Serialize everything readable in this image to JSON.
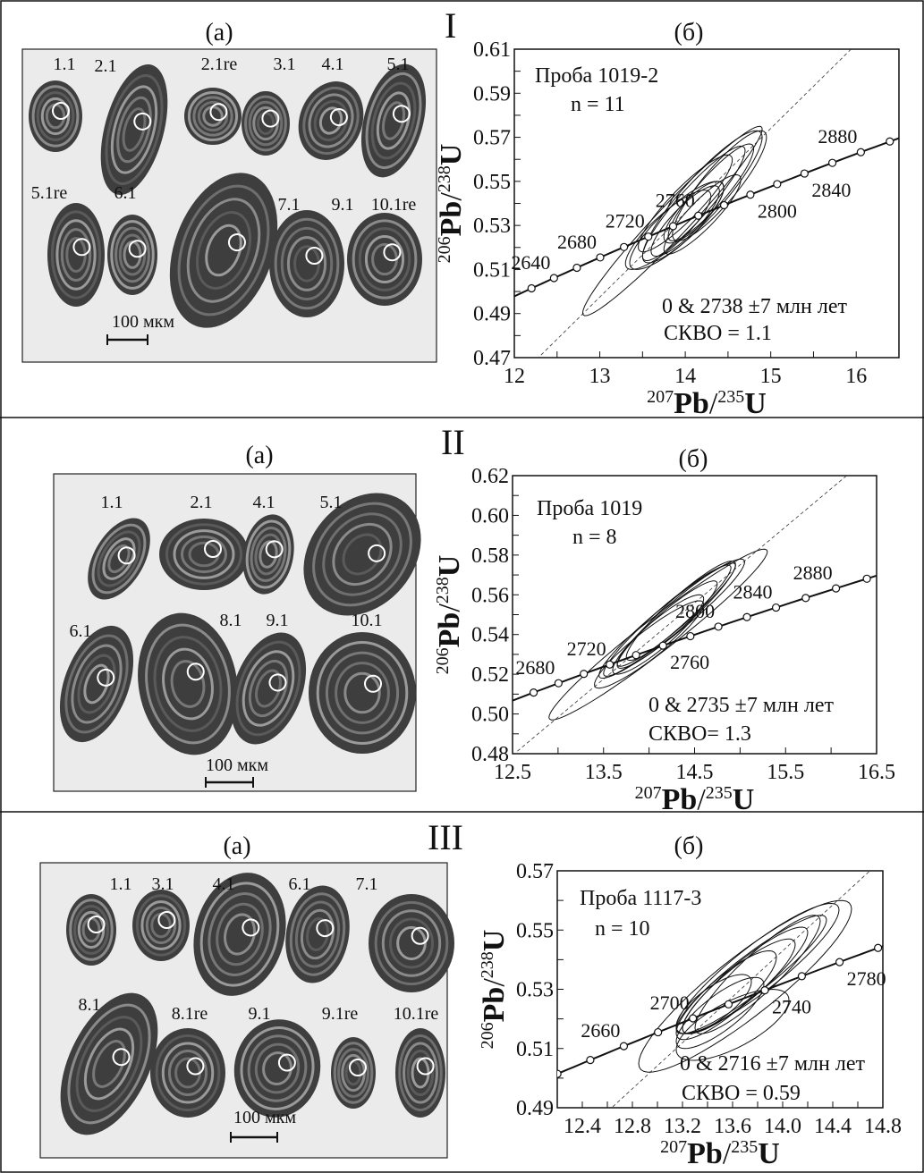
{
  "panels": [
    {
      "section_label": "I",
      "image_label": "(а)",
      "plot_label": "(б)",
      "grain_labels": [
        "1.1",
        "2.1",
        "2.1re",
        "3.1",
        "4.1",
        "5.1",
        "5.1re",
        "6.1",
        "7.1",
        "9.1",
        "10.1re"
      ],
      "scale_bar": "100 мкм"
    },
    {
      "section_label": "II",
      "image_label": "(а)",
      "plot_label": "(б)",
      "grain_labels": [
        "1.1",
        "2.1",
        "4.1",
        "5.1",
        "6.1",
        "8.1",
        "9.1",
        "10.1"
      ],
      "scale_bar": "100 мкм"
    },
    {
      "section_label": "III",
      "image_label": "(а)",
      "plot_label": "(б)",
      "grain_labels": [
        "1.1",
        "3.1",
        "4.1",
        "6.1",
        "7.1",
        "8.1",
        "8.1re",
        "9.1",
        "9.1re",
        "10.1re"
      ],
      "scale_bar": "100 мкм"
    }
  ],
  "chart_data": [
    {
      "type": "scatter",
      "title": "",
      "xlabel": {
        "mass_a": "207",
        "element_a": "Pb",
        "mass_b": "235",
        "element_b": "U"
      },
      "ylabel": {
        "mass_a": "206",
        "element_a": "Pb",
        "mass_b": "238",
        "element_b": "U"
      },
      "xlim": [
        12,
        16.5
      ],
      "ylim": [
        0.47,
        0.61
      ],
      "xticks": [
        "12",
        "13",
        "14",
        "15",
        "16"
      ],
      "yticks": [
        "0.47",
        "0.49",
        "0.51",
        "0.53",
        "0.55",
        "0.57",
        "0.59",
        "0.61"
      ],
      "sample": "Проба 1019-2",
      "n": "n = 11",
      "result": "0 & 2738 ±7 млн лет",
      "mswd": "СКВО = 1.1",
      "intercept_age_ma": 2738,
      "concordia_age_labels": [
        "2640",
        "2680",
        "2720",
        "2760",
        "2800",
        "2840",
        "2880"
      ],
      "ellipses": [
        {
          "x": 13.85,
          "y": 0.532,
          "sx": 1.05,
          "sy": 0.043,
          "rho": 0.97
        },
        {
          "x": 14.2,
          "y": 0.543,
          "sx": 0.7,
          "sy": 0.03,
          "rho": 0.9
        },
        {
          "x": 14.0,
          "y": 0.54,
          "sx": 0.55,
          "sy": 0.022,
          "rho": 0.9
        },
        {
          "x": 14.1,
          "y": 0.54,
          "sx": 0.6,
          "sy": 0.026,
          "rho": 0.92
        },
        {
          "x": 13.9,
          "y": 0.53,
          "sx": 0.55,
          "sy": 0.02,
          "rho": 0.85
        },
        {
          "x": 14.2,
          "y": 0.535,
          "sx": 0.45,
          "sy": 0.018,
          "rho": 0.88
        },
        {
          "x": 14.3,
          "y": 0.545,
          "sx": 0.5,
          "sy": 0.022,
          "rho": 0.9
        },
        {
          "x": 13.8,
          "y": 0.528,
          "sx": 0.5,
          "sy": 0.018,
          "rho": 0.85
        },
        {
          "x": 14.4,
          "y": 0.548,
          "sx": 0.55,
          "sy": 0.025,
          "rho": 0.88
        },
        {
          "x": 14.0,
          "y": 0.532,
          "sx": 0.4,
          "sy": 0.016,
          "rho": 0.85
        },
        {
          "x": 14.1,
          "y": 0.536,
          "sx": 0.35,
          "sy": 0.014,
          "rho": 0.8
        }
      ]
    },
    {
      "type": "scatter",
      "title": "",
      "xlabel": {
        "mass_a": "207",
        "element_a": "Pb",
        "mass_b": "235",
        "element_b": "U"
      },
      "ylabel": {
        "mass_a": "206",
        "element_a": "Pb",
        "mass_b": "238",
        "element_b": "U"
      },
      "xlim": [
        12.5,
        16.5
      ],
      "ylim": [
        0.48,
        0.62
      ],
      "xticks": [
        "12.5",
        "13.5",
        "14.5",
        "15.5",
        "16.5"
      ],
      "yticks": [
        "0.48",
        "0.50",
        "0.52",
        "0.54",
        "0.56",
        "0.58",
        "0.60",
        "0.62"
      ],
      "sample": "Проба 1019",
      "n": "n = 8",
      "result": "0 & 2735 ±7 млн лет",
      "mswd": "СКВО= 1.3",
      "intercept_age_ma": 2735,
      "concordia_age_labels": [
        "2680",
        "2720",
        "2760",
        "2800",
        "2840",
        "2880"
      ],
      "ellipses": [
        {
          "x": 14.1,
          "y": 0.54,
          "sx": 1.2,
          "sy": 0.043,
          "rho": 0.97
        },
        {
          "x": 14.25,
          "y": 0.548,
          "sx": 0.8,
          "sy": 0.03,
          "rho": 0.95
        },
        {
          "x": 14.2,
          "y": 0.547,
          "sx": 0.7,
          "sy": 0.028,
          "rho": 0.95
        },
        {
          "x": 14.3,
          "y": 0.55,
          "sx": 0.65,
          "sy": 0.026,
          "rho": 0.95
        },
        {
          "x": 14.2,
          "y": 0.545,
          "sx": 0.55,
          "sy": 0.022,
          "rho": 0.93
        },
        {
          "x": 14.1,
          "y": 0.54,
          "sx": 0.5,
          "sy": 0.02,
          "rho": 0.9
        },
        {
          "x": 14.35,
          "y": 0.552,
          "sx": 0.6,
          "sy": 0.025,
          "rho": 0.93
        },
        {
          "x": 14.0,
          "y": 0.535,
          "sx": 0.6,
          "sy": 0.022,
          "rho": 0.92
        }
      ]
    },
    {
      "type": "scatter",
      "title": "",
      "xlabel": {
        "mass_a": "207",
        "element_a": "Pb",
        "mass_b": "235",
        "element_b": "U"
      },
      "ylabel": {
        "mass_a": "206",
        "element_a": "Pb",
        "mass_b": "238",
        "element_b": "U"
      },
      "xlim": [
        12.2,
        14.8
      ],
      "ylim": [
        0.49,
        0.57
      ],
      "xticks": [
        "12.4",
        "12.8",
        "13.2",
        "13.6",
        "14.0",
        "14.4",
        "14.8"
      ],
      "yticks": [
        "0.49",
        "0.51",
        "0.53",
        "0.55",
        "0.57"
      ],
      "sample": "Проба 1117-3",
      "n": "n = 10",
      "result": "0 & 2716 ±7 млн лет",
      "mswd": "СКВО = 0.59",
      "intercept_age_ma": 2716,
      "concordia_age_labels": [
        "2660",
        "2700",
        "2740",
        "2780"
      ],
      "ellipses": [
        {
          "x": 13.7,
          "y": 0.531,
          "sx": 0.85,
          "sy": 0.029,
          "rho": 0.9
        },
        {
          "x": 13.75,
          "y": 0.535,
          "sx": 0.6,
          "sy": 0.02,
          "rho": 0.92
        },
        {
          "x": 13.8,
          "y": 0.537,
          "sx": 0.65,
          "sy": 0.022,
          "rho": 0.9
        },
        {
          "x": 13.7,
          "y": 0.533,
          "sx": 0.5,
          "sy": 0.018,
          "rho": 0.9
        },
        {
          "x": 13.65,
          "y": 0.531,
          "sx": 0.45,
          "sy": 0.016,
          "rho": 0.88
        },
        {
          "x": 13.55,
          "y": 0.528,
          "sx": 0.4,
          "sy": 0.015,
          "rho": 0.85
        },
        {
          "x": 13.6,
          "y": 0.518,
          "sx": 0.45,
          "sy": 0.012,
          "rho": 0.7
        },
        {
          "x": 13.5,
          "y": 0.522,
          "sx": 0.35,
          "sy": 0.012,
          "rho": 0.8
        },
        {
          "x": 13.45,
          "y": 0.525,
          "sx": 0.3,
          "sy": 0.01,
          "rho": 0.75
        },
        {
          "x": 13.8,
          "y": 0.535,
          "sx": 0.5,
          "sy": 0.02,
          "rho": 0.9
        }
      ]
    }
  ]
}
